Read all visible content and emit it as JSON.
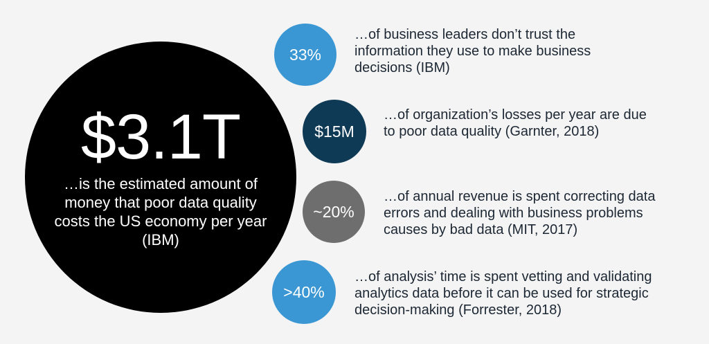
{
  "main_stat": {
    "value": "$3.1T",
    "description": "…is the estimated amount of money that poor data quality costs the US economy per year (IBM)"
  },
  "stats": [
    {
      "value": "33%",
      "color": "#3a97d3",
      "text": "…of business leaders don’t trust the information they use to make business decisions (IBM)"
    },
    {
      "value": "$15M",
      "color": "#0f3a56",
      "text": "…of organization’s losses per year are due to poor data quality (Garnter, 2018)"
    },
    {
      "value": "~20%",
      "color": "#6e6e6e",
      "text": "…of annual revenue is spent correcting data errors and dealing with business problems causes by bad data (MIT, 2017)"
    },
    {
      "value": ">40%",
      "color": "#3a97d3",
      "text": "…of analysis’ time is spent vetting and validating analytics data before it can be used for strategic decision-making (Forrester, 2018)"
    }
  ]
}
